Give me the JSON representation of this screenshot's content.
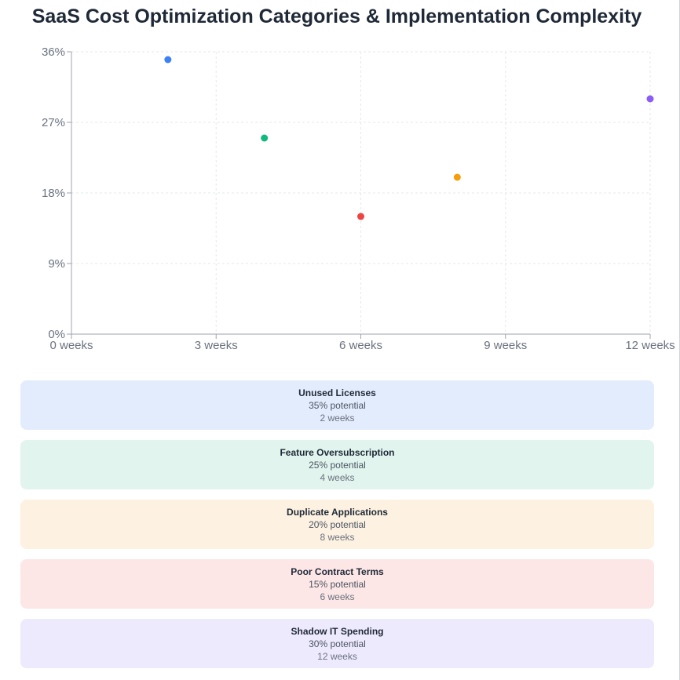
{
  "title": "SaaS Cost Optimization Categories & Implementation Complexity",
  "chart_data": {
    "type": "scatter",
    "x_ticks": [
      "0 weeks",
      "3 weeks",
      "6 weeks",
      "9 weeks",
      "12 weeks"
    ],
    "y_ticks": [
      "0%",
      "9%",
      "18%",
      "27%",
      "36%"
    ],
    "xlim": [
      0,
      12
    ],
    "ylim": [
      0,
      36
    ],
    "grid": true,
    "points": [
      {
        "name": "Unused Licenses",
        "x": 2,
        "y": 35,
        "color": "#3b82f6"
      },
      {
        "name": "Feature Oversubscription",
        "x": 4,
        "y": 25,
        "color": "#10b981"
      },
      {
        "name": "Duplicate Applications",
        "x": 8,
        "y": 20,
        "color": "#f59e0b"
      },
      {
        "name": "Poor Contract Terms",
        "x": 6,
        "y": 15,
        "color": "#ef4444"
      },
      {
        "name": "Shadow IT Spending",
        "x": 12,
        "y": 30,
        "color": "#8b5cf6"
      }
    ]
  },
  "cards": [
    {
      "name": "Unused Licenses",
      "potential": "35% potential",
      "time": "2 weeks",
      "bg": "#e3ecfc"
    },
    {
      "name": "Feature Oversubscription",
      "potential": "25% potential",
      "time": "4 weeks",
      "bg": "#e1f4ed"
    },
    {
      "name": "Duplicate Applications",
      "potential": "20% potential",
      "time": "8 weeks",
      "bg": "#fdf1e1"
    },
    {
      "name": "Poor Contract Terms",
      "potential": "15% potential",
      "time": "6 weeks",
      "bg": "#fce6e6"
    },
    {
      "name": "Shadow IT Spending",
      "potential": "30% potential",
      "time": "12 weeks",
      "bg": "#eeeafd"
    }
  ]
}
